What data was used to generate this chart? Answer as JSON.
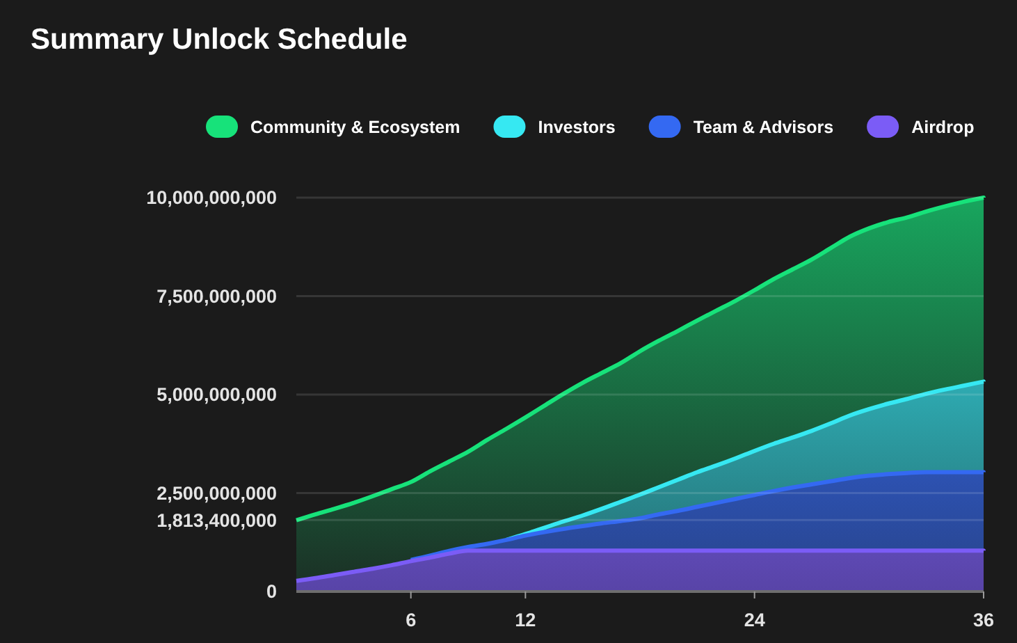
{
  "chart_data": {
    "type": "area",
    "title": "Summary Unlock Schedule",
    "stacked": true,
    "x": [
      0,
      1,
      2,
      3,
      4,
      5,
      6,
      7,
      8,
      9,
      10,
      11,
      12,
      13,
      14,
      15,
      16,
      17,
      18,
      19,
      20,
      21,
      22,
      23,
      24,
      25,
      26,
      27,
      28,
      29,
      30,
      31,
      32,
      33,
      34,
      35,
      36
    ],
    "series": [
      {
        "name": "Airdrop",
        "color": "#7b5cf6",
        "values": [
          270000000,
          340000000,
          420000000,
          500000000,
          580000000,
          670000000,
          770000000,
          860000000,
          960000000,
          1040000000,
          1040000000,
          1040000000,
          1040000000,
          1040000000,
          1040000000,
          1040000000,
          1040000000,
          1040000000,
          1040000000,
          1040000000,
          1040000000,
          1040000000,
          1040000000,
          1040000000,
          1040000000,
          1040000000,
          1040000000,
          1040000000,
          1040000000,
          1040000000,
          1040000000,
          1040000000,
          1040000000,
          1040000000,
          1040000000,
          1040000000,
          1040000000
        ]
      },
      {
        "name": "Team & Advisors",
        "color": "#3469f2",
        "values": [
          null,
          null,
          null,
          null,
          null,
          null,
          30000000,
          50000000,
          70000000,
          90000000,
          170000000,
          270000000,
          380000000,
          470000000,
          550000000,
          620000000,
          690000000,
          750000000,
          820000000,
          920000000,
          1010000000,
          1110000000,
          1210000000,
          1310000000,
          1410000000,
          1510000000,
          1600000000,
          1680000000,
          1760000000,
          1840000000,
          1900000000,
          1940000000,
          1970000000,
          1990000000,
          1990000000,
          1990000000,
          1990000000
        ]
      },
      {
        "name": "Investors",
        "color": "#36e8f2",
        "values": [
          null,
          null,
          null,
          null,
          null,
          null,
          null,
          null,
          null,
          null,
          null,
          0,
          40000000,
          110000000,
          190000000,
          270000000,
          370000000,
          490000000,
          600000000,
          690000000,
          790000000,
          880000000,
          950000000,
          1030000000,
          1120000000,
          1200000000,
          1270000000,
          1360000000,
          1470000000,
          1590000000,
          1690000000,
          1790000000,
          1880000000,
          1990000000,
          2100000000,
          2200000000,
          2300000000
        ]
      },
      {
        "name": "Community & Ecosystem",
        "color": "#17e27a",
        "values": [
          1540000000,
          1620000000,
          1680000000,
          1750000000,
          1840000000,
          1930000000,
          1980000000,
          2140000000,
          2270000000,
          2420000000,
          2640000000,
          2820000000,
          2960000000,
          3100000000,
          3240000000,
          3370000000,
          3450000000,
          3520000000,
          3640000000,
          3720000000,
          3780000000,
          3850000000,
          3930000000,
          4000000000,
          4080000000,
          4180000000,
          4270000000,
          4350000000,
          4450000000,
          4540000000,
          4590000000,
          4610000000,
          4610000000,
          4630000000,
          4650000000,
          4670000000,
          4670000000
        ]
      }
    ],
    "xlim": [
      0,
      36
    ],
    "xticks": [
      6,
      12,
      24,
      36
    ],
    "ylim": [
      0,
      10000000000
    ],
    "yticks": [
      {
        "value": 0,
        "label": "0"
      },
      {
        "value": 1813400000,
        "label": "1,813,400,000"
      },
      {
        "value": 2500000000,
        "label": "2,500,000,000"
      },
      {
        "value": 5000000000,
        "label": "5,000,000,000"
      },
      {
        "value": 7500000000,
        "label": "7,500,000,000"
      },
      {
        "value": 10000000000,
        "label": "10,000,000,000"
      }
    ],
    "grid": "y",
    "legend": "top left",
    "line_style": "solid"
  }
}
